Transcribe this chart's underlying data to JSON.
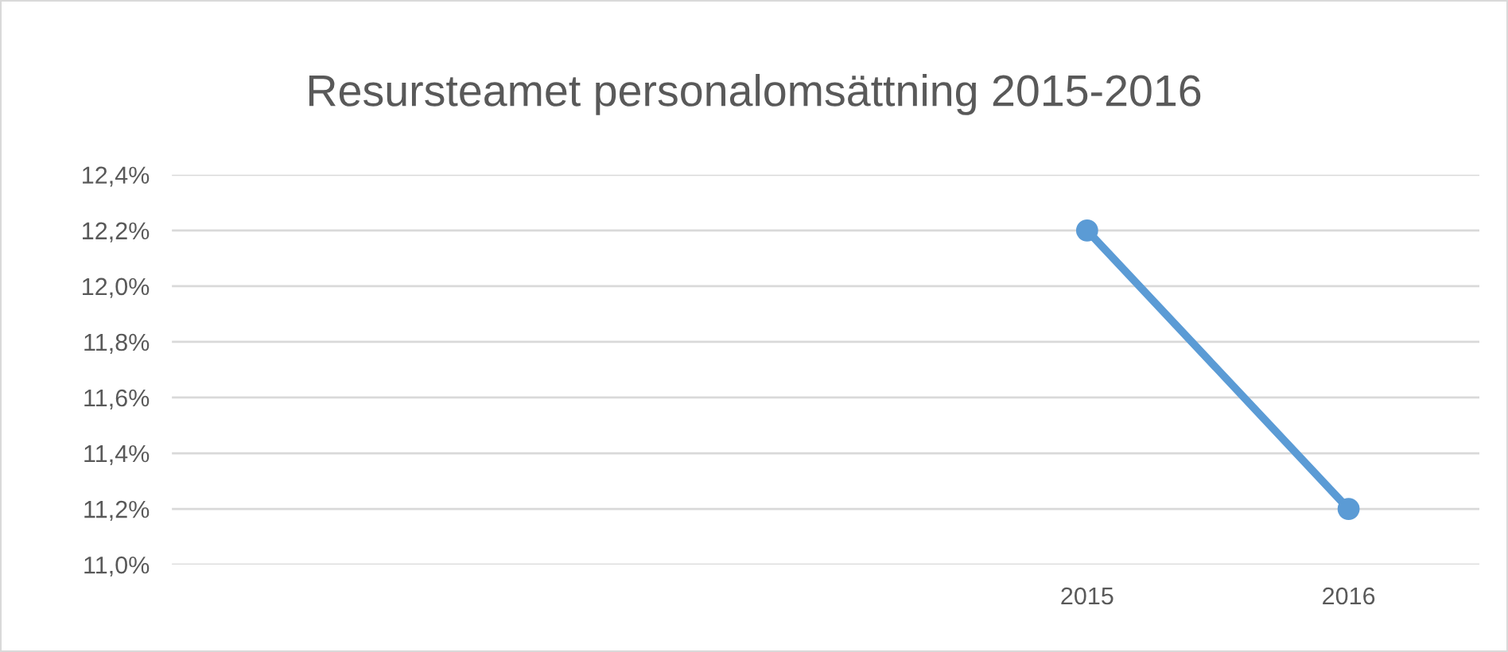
{
  "chart_data": {
    "type": "line",
    "title": "Resursteamet personalomsättning 2015-2016",
    "categories": [
      null,
      null,
      null,
      "2015",
      "2016"
    ],
    "series": [
      {
        "color": "#5b9bd5",
        "values": [
          null,
          null,
          null,
          12.2,
          11.2
        ]
      }
    ],
    "ylim": [
      11.0,
      12.4
    ],
    "yticks": [
      {
        "value": 11.0,
        "label": "11,0%"
      },
      {
        "value": 11.2,
        "label": "11,2%"
      },
      {
        "value": 11.4,
        "label": "11,4%"
      },
      {
        "value": 11.6,
        "label": "11,6%"
      },
      {
        "value": 11.8,
        "label": "11,8%"
      },
      {
        "value": 12.0,
        "label": "12,0%"
      },
      {
        "value": 12.2,
        "label": "12,2%"
      },
      {
        "value": 12.4,
        "label": "12,4%"
      }
    ],
    "grid": "y",
    "legend": false,
    "marker": "circle",
    "line_style": "solid"
  }
}
